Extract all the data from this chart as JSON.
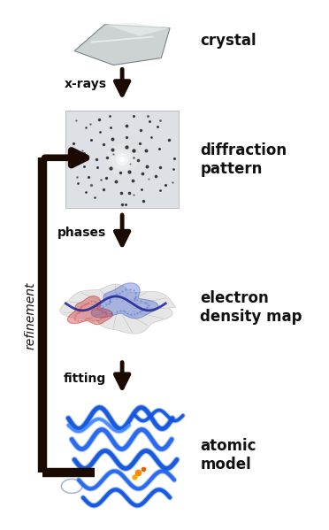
{
  "bg_color": "#ffffff",
  "fig_width": 3.72,
  "fig_height": 5.99,
  "dpi": 100,
  "labels": {
    "crystal": "crystal",
    "xrays": "x-rays",
    "diffraction": "diffraction\npattern",
    "phases": "phases",
    "electron": "electron\ndensity map",
    "fitting": "fitting",
    "atomic": "atomic\nmodel",
    "refinement": "refinement"
  },
  "label_fontsize": 12,
  "small_fontsize": 10,
  "arrow_color": "#1a0a00",
  "text_color": "#111111"
}
